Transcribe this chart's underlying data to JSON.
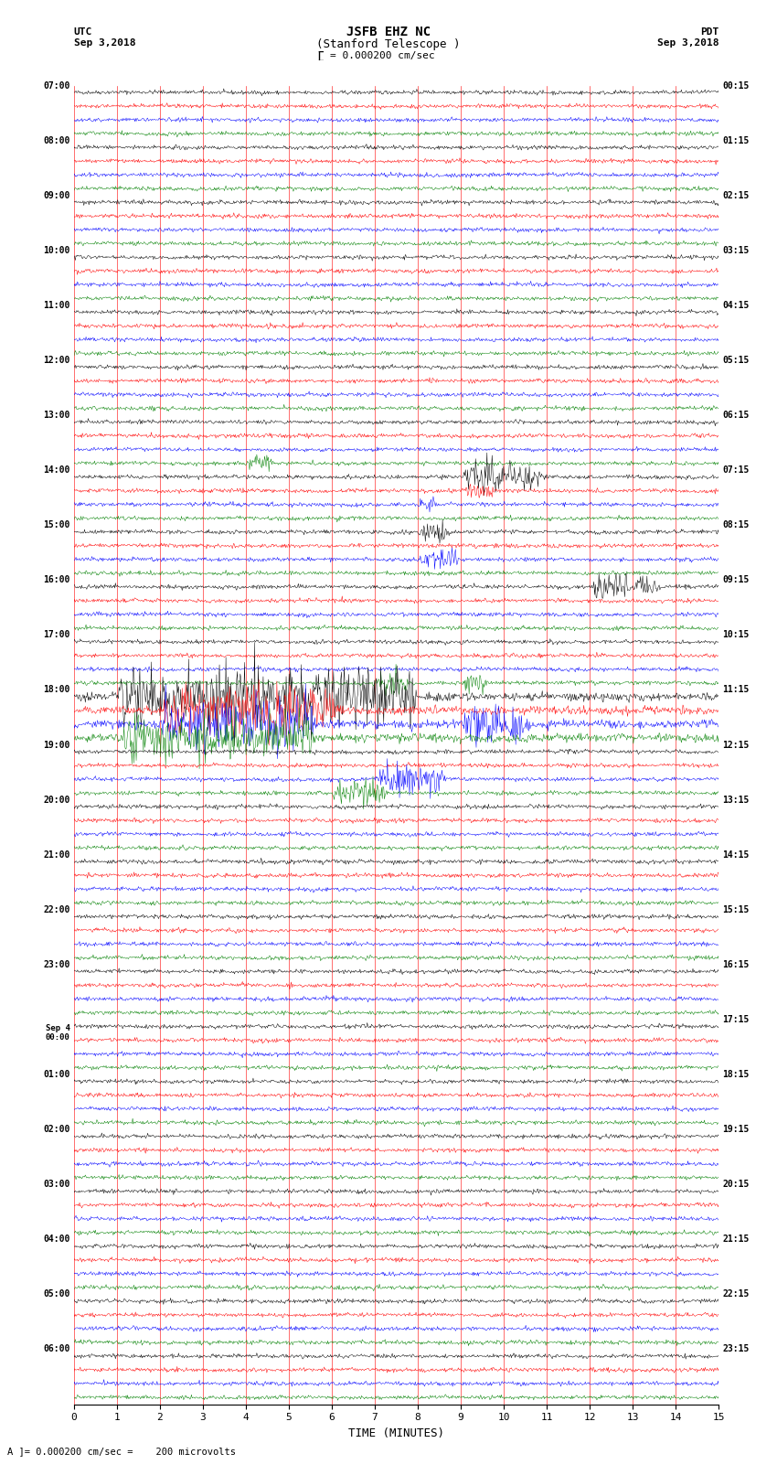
{
  "title_line1": "JSFB EHZ NC",
  "title_line2": "(Stanford Telescope )",
  "scale_label": "= 0.000200 cm/sec",
  "footer_label": "A ]= 0.000200 cm/sec =    200 microvolts",
  "utc_label": "UTC",
  "utc_date": "Sep 3,2018",
  "pdt_label": "PDT",
  "pdt_date": "Sep 3,2018",
  "xlabel": "TIME (MINUTES)",
  "left_times": [
    "07:00",
    "08:00",
    "09:00",
    "10:00",
    "11:00",
    "12:00",
    "13:00",
    "14:00",
    "15:00",
    "16:00",
    "17:00",
    "18:00",
    "19:00",
    "20:00",
    "21:00",
    "22:00",
    "23:00",
    "Sep 4\n00:00",
    "01:00",
    "02:00",
    "03:00",
    "04:00",
    "05:00",
    "06:00"
  ],
  "right_times": [
    "00:15",
    "01:15",
    "02:15",
    "03:15",
    "04:15",
    "05:15",
    "06:15",
    "07:15",
    "08:15",
    "09:15",
    "10:15",
    "11:15",
    "12:15",
    "13:15",
    "14:15",
    "15:15",
    "16:15",
    "17:15",
    "18:15",
    "19:15",
    "20:15",
    "21:15",
    "22:15",
    "23:15"
  ],
  "n_rows": 24,
  "traces_per_row": 4,
  "minutes": 15,
  "trace_colors": [
    "black",
    "red",
    "blue",
    "green"
  ],
  "background_color": "white",
  "noise_base": 0.06,
  "amplitude_scale": 0.3
}
